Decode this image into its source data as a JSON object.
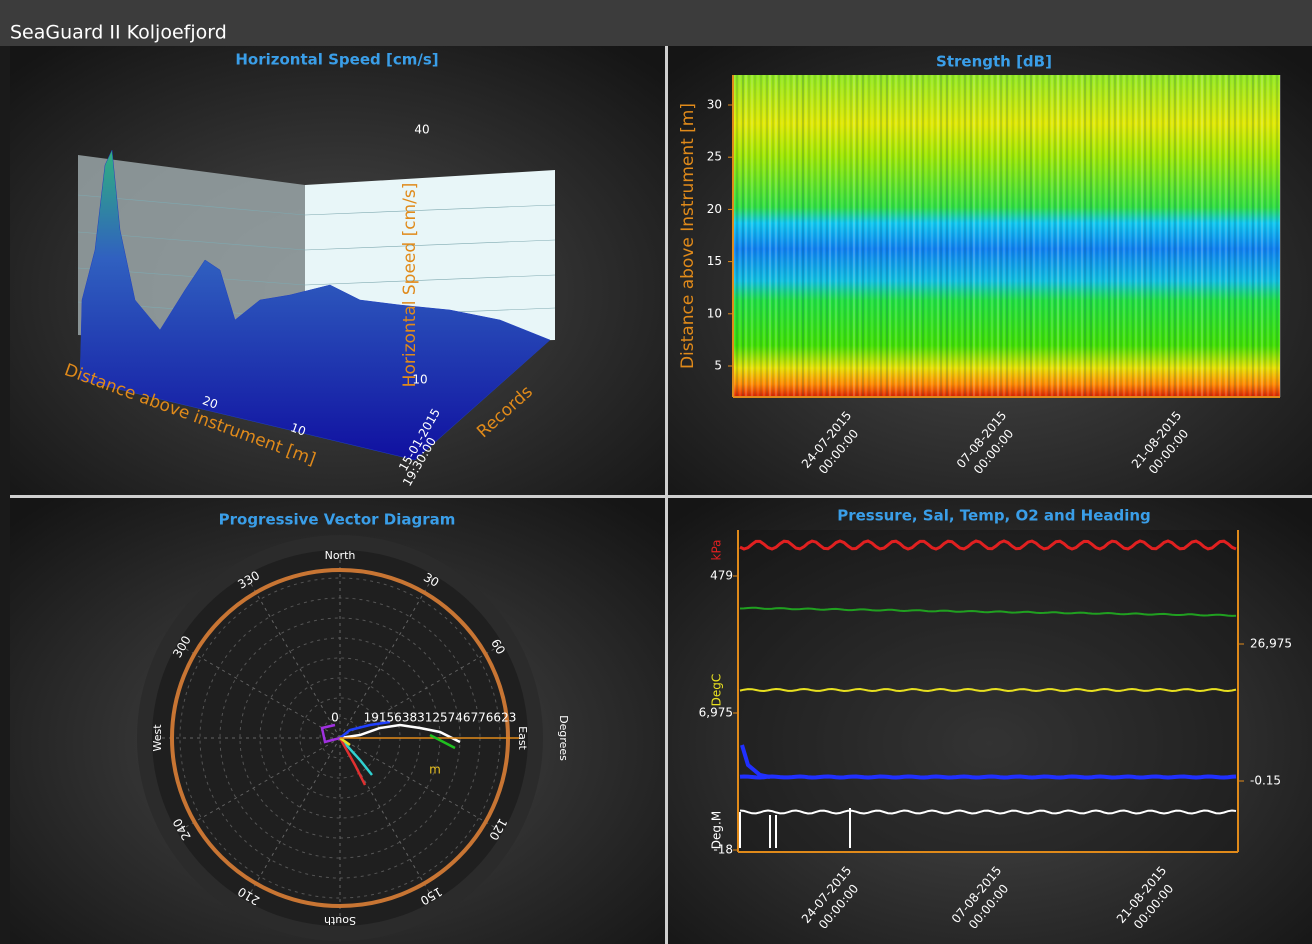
{
  "window": {
    "title": "SeaGuard II Koljoefjord"
  },
  "panels": [
    {
      "title": "Horizontal Speed [cm/s]",
      "x_axis_label": "Distance above instrument [m]",
      "z_axis_label": "Horizontal Speed [cm/s]",
      "y_axis_label": "Records",
      "ticks": [
        "40",
        "10",
        "20",
        "10",
        "15-01-2015",
        "19:30:00"
      ]
    },
    {
      "title": "Strength [dB]",
      "y_axis_label": "Distance above Instrument [m]",
      "y_ticks": [
        "30",
        "25",
        "20",
        "15",
        "10",
        "5"
      ],
      "x_ticks": [
        {
          "date": "24-07-2015",
          "time": "00:00:00"
        },
        {
          "date": "07-08-2015",
          "time": "00:00:00"
        },
        {
          "date": "21-08-2015",
          "time": "00:00:00"
        }
      ]
    },
    {
      "title": "Progressive Vector Diagram",
      "directions": [
        "North",
        "East",
        "South",
        "West"
      ],
      "angle_labels": [
        "30",
        "60",
        "120",
        "150",
        "210",
        "240",
        "300",
        "330"
      ],
      "radial_labels": [
        "0",
        "19156383125746776623"
      ],
      "unit_labels": [
        "Degrees",
        "m"
      ]
    },
    {
      "title": "Pressure, Sal, Temp, O2 and Heading",
      "axes": [
        {
          "unit": "kPa",
          "tick": "479"
        },
        {
          "tick": "26,975"
        },
        {
          "unit": "DegC",
          "tick": "6,975"
        },
        {
          "tick": "-0.15"
        },
        {
          "unit": "Deg.M",
          "tick": "-18"
        }
      ],
      "x_ticks": [
        {
          "date": "24-07-2015",
          "time": "00:00:00"
        },
        {
          "date": "07-08-2015",
          "time": "00:00:00"
        },
        {
          "date": "21-08-2015",
          "time": "00:00:00"
        }
      ]
    }
  ]
}
